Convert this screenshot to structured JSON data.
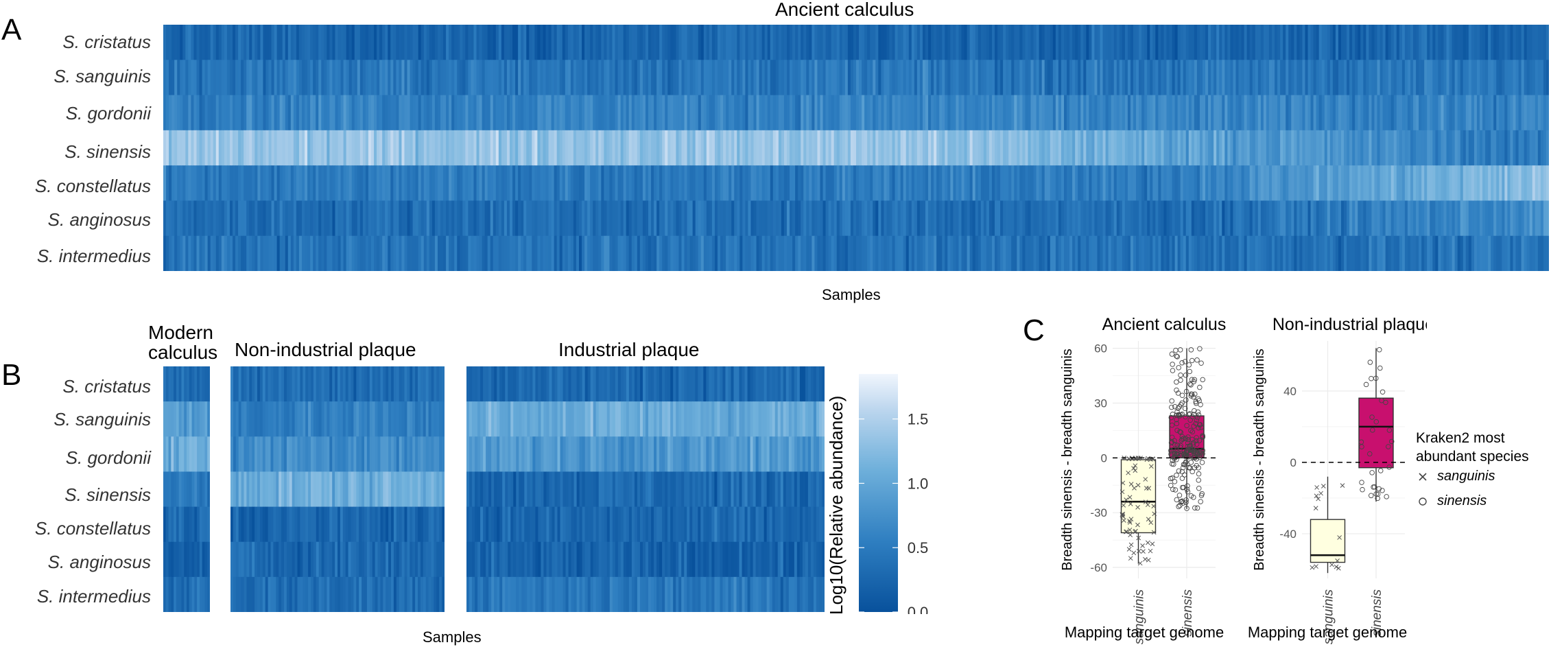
{
  "panels": {
    "a": {
      "letter": "A",
      "title": "Ancient calculus",
      "xlabel": "Samples",
      "species": [
        "S. cristatus",
        "S. sanguinis",
        "S. gordonii",
        "S. sinensis",
        "S. constellatus",
        "S. anginosus",
        "S. intermedius"
      ]
    },
    "b": {
      "letter": "B",
      "group_titles": {
        "modern_line1": "Modern",
        "modern_line2": "calculus",
        "nonind": "Non-industrial plaque",
        "industrial": "Industrial plaque"
      },
      "xlabel": "Samples",
      "species": [
        "S. cristatus",
        "S. sanguinis",
        "S. gordonii",
        "S. sinensis",
        "S. constellatus",
        "S. anginosus",
        "S. intermedius"
      ],
      "colorbar": {
        "label": "Log10(Relative abundance)",
        "ticks": [
          "1.5",
          "1.0",
          "0.5",
          "0.0"
        ],
        "range": [
          0,
          1.85
        ]
      }
    },
    "c": {
      "letter": "C",
      "legend": {
        "title_line1": "Kraken2 most",
        "title_line2": "abundant species",
        "items": [
          {
            "symbol": "cross-icon",
            "label": "sanguinis"
          },
          {
            "symbol": "circle-icon",
            "label": "sinensis"
          }
        ]
      }
    }
  },
  "chart_data": [
    {
      "type": "heatmap",
      "title": "Ancient calculus",
      "xlabel": "Samples",
      "rows": [
        "S. cristatus",
        "S. sanguinis",
        "S. gordonii",
        "S. sinensis",
        "S. constellatus",
        "S. anginosus",
        "S. intermedius"
      ],
      "n_samples": 500,
      "row_mean_log10": [
        0.25,
        0.45,
        0.6,
        1.35,
        0.5,
        0.35,
        0.4
      ],
      "value_range": [
        0,
        1.85
      ]
    },
    {
      "type": "heatmap",
      "title": "Modern calculus",
      "rows": [
        "S. cristatus",
        "S. sanguinis",
        "S. gordonii",
        "S. sinensis",
        "S. constellatus",
        "S. anginosus",
        "S. intermedius"
      ],
      "n_samples": 18,
      "row_mean_log10": [
        0.3,
        0.9,
        1.1,
        0.5,
        0.3,
        0.25,
        0.3
      ],
      "value_range": [
        0,
        1.85
      ]
    },
    {
      "type": "heatmap",
      "title": "Non-industrial plaque",
      "rows": [
        "S. cristatus",
        "S. sanguinis",
        "S. gordonii",
        "S. sinensis",
        "S. constellatus",
        "S. anginosus",
        "S. intermedius"
      ],
      "n_samples": 80,
      "row_mean_log10": [
        0.35,
        0.55,
        0.7,
        1.1,
        0.25,
        0.3,
        0.35
      ],
      "value_range": [
        0,
        1.85
      ]
    },
    {
      "type": "heatmap",
      "title": "Industrial plaque",
      "xlabel": "Samples",
      "rows": [
        "S. cristatus",
        "S. sanguinis",
        "S. gordonii",
        "S. sinensis",
        "S. constellatus",
        "S. anginosus",
        "S. intermedius"
      ],
      "n_samples": 130,
      "row_mean_log10": [
        0.3,
        1.05,
        0.85,
        0.3,
        0.25,
        0.2,
        0.45
      ],
      "value_range": [
        0,
        1.85
      ]
    },
    {
      "type": "box",
      "title": "Ancient calculus",
      "xlabel": "Mapping target genome",
      "ylabel": "Breadth sinensis - breadth sanguinis",
      "categories": [
        "sanguinis",
        "sinensis"
      ],
      "ylim": [
        -66,
        64
      ],
      "yticks": [
        -60,
        -30,
        0,
        30,
        60
      ],
      "reference_line": 0,
      "boxes": [
        {
          "category": "sanguinis",
          "min": -58,
          "q1": -41,
          "median": -24,
          "q3": -1,
          "max": 0,
          "fill": "#FFFFE0",
          "n_points": 70
        },
        {
          "category": "sinensis",
          "min": -28,
          "q1": 0,
          "median": 5,
          "q3": 23,
          "max": 60,
          "fill": "#C8106E",
          "n_points": 230
        }
      ]
    },
    {
      "type": "box",
      "title": "Non-industrial plaque",
      "xlabel": "Mapping target genome",
      "ylabel": "Breadth sinensis - breadth sanguinis",
      "categories": [
        "sanguinis",
        "sinensis"
      ],
      "ylim": [
        -65,
        68
      ],
      "yticks": [
        -40,
        0,
        40
      ],
      "reference_line": 0,
      "boxes": [
        {
          "category": "sanguinis",
          "min": -62,
          "q1": -56,
          "median": -52,
          "q3": -32,
          "max": -8,
          "fill": "#FFFFE0",
          "n_points": 14
        },
        {
          "category": "sinensis",
          "min": -22,
          "q1": -3,
          "median": 20,
          "q3": 36,
          "max": 64,
          "fill": "#C8106E",
          "n_points": 32
        }
      ]
    }
  ]
}
